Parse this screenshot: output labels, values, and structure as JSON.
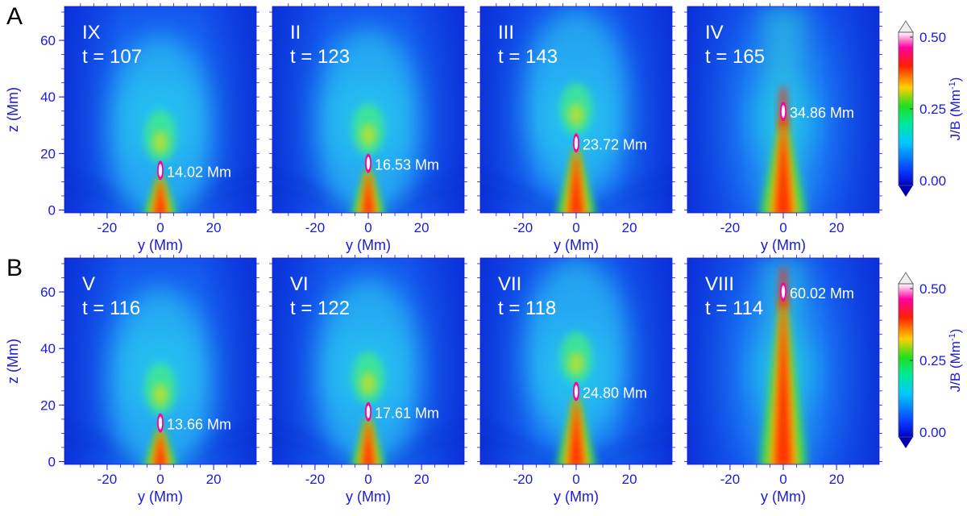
{
  "figure": {
    "rows": [
      {
        "letter": "A"
      },
      {
        "letter": "B"
      }
    ],
    "axis_color": "#1a1ad8",
    "label_color": "#ffffff"
  },
  "chart_data": [
    {
      "type": "heatmap",
      "row": "A",
      "panel": "IX",
      "time_label": "t = 107",
      "annotation": "14.02 Mm",
      "peak_height_Mm": 14.02,
      "xlabel": "y (Mm)",
      "ylabel": "z (Mm)",
      "xticks": [
        -20,
        0,
        20
      ],
      "yticks": [
        0,
        20,
        40,
        60
      ],
      "xlim": [
        -36,
        36
      ],
      "ylim": [
        -1,
        72
      ],
      "spread": "wide"
    },
    {
      "type": "heatmap",
      "row": "A",
      "panel": "II",
      "time_label": "t = 123",
      "annotation": "16.53 Mm",
      "peak_height_Mm": 16.53,
      "xlabel": "y (Mm)",
      "ylabel": "",
      "xticks": [
        -20,
        0,
        20
      ],
      "yticks": [
        0,
        20,
        40,
        60
      ],
      "xlim": [
        -36,
        36
      ],
      "ylim": [
        -1,
        72
      ],
      "spread": "wide"
    },
    {
      "type": "heatmap",
      "row": "A",
      "panel": "III",
      "time_label": "t = 143",
      "annotation": "23.72 Mm",
      "peak_height_Mm": 23.72,
      "xlabel": "y (Mm)",
      "ylabel": "",
      "xticks": [
        -20,
        0,
        20
      ],
      "yticks": [
        0,
        20,
        40,
        60
      ],
      "xlim": [
        -36,
        36
      ],
      "ylim": [
        -1,
        72
      ],
      "spread": "narrow"
    },
    {
      "type": "heatmap",
      "row": "A",
      "panel": "IV",
      "time_label": "t = 165",
      "annotation": "34.86 Mm",
      "peak_height_Mm": 34.86,
      "xlabel": "y (Mm)",
      "ylabel": "",
      "xticks": [
        -20,
        0,
        20
      ],
      "yticks": [
        0,
        20,
        40,
        60
      ],
      "xlim": [
        -36,
        36
      ],
      "ylim": [
        -1,
        72
      ],
      "spread": "column"
    },
    {
      "type": "heatmap",
      "row": "B",
      "panel": "V",
      "time_label": "t = 116",
      "annotation": "13.66 Mm",
      "peak_height_Mm": 13.66,
      "xlabel": "y (Mm)",
      "ylabel": "z (Mm)",
      "xticks": [
        -20,
        0,
        20
      ],
      "yticks": [
        0,
        20,
        40,
        60
      ],
      "xlim": [
        -36,
        36
      ],
      "ylim": [
        -1,
        72
      ],
      "spread": "wide"
    },
    {
      "type": "heatmap",
      "row": "B",
      "panel": "VI",
      "time_label": "t = 122",
      "annotation": "17.61 Mm",
      "peak_height_Mm": 17.61,
      "xlabel": "y (Mm)",
      "ylabel": "",
      "xticks": [
        -20,
        0,
        20
      ],
      "yticks": [
        0,
        20,
        40,
        60
      ],
      "xlim": [
        -36,
        36
      ],
      "ylim": [
        -1,
        72
      ],
      "spread": "wide"
    },
    {
      "type": "heatmap",
      "row": "B",
      "panel": "VII",
      "time_label": "t = 118",
      "annotation": "24.80 Mm",
      "peak_height_Mm": 24.8,
      "xlabel": "y (Mm)",
      "ylabel": "",
      "xticks": [
        -20,
        0,
        20
      ],
      "yticks": [
        0,
        20,
        40,
        60
      ],
      "xlim": [
        -36,
        36
      ],
      "ylim": [
        -1,
        72
      ],
      "spread": "narrow"
    },
    {
      "type": "heatmap",
      "row": "B",
      "panel": "VIII",
      "time_label": "t = 114",
      "annotation": "60.02 Mm",
      "peak_height_Mm": 60.02,
      "xlabel": "y (Mm)",
      "ylabel": "",
      "xticks": [
        -20,
        0,
        20
      ],
      "yticks": [
        0,
        20,
        40,
        60
      ],
      "xlim": [
        -36,
        36
      ],
      "ylim": [
        -1,
        72
      ],
      "spread": "column"
    }
  ],
  "colorbar": {
    "label": "J/B (Mm",
    "label_superscript": "-1",
    "label_close": ")",
    "ticks": [
      0.0,
      0.25,
      0.5
    ],
    "tick_labels": [
      "0.00",
      "0.25",
      "0.50"
    ],
    "range": [
      0,
      0.5
    ],
    "colors": [
      "#0000c8",
      "#0a3cff",
      "#00c8ff",
      "#00e8a0",
      "#20e020",
      "#ffd000",
      "#ff2000",
      "#ff00a0",
      "#ffffff"
    ]
  }
}
